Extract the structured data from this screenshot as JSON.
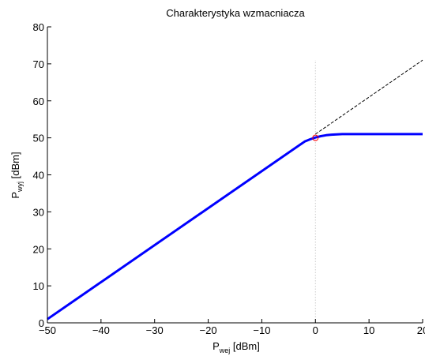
{
  "chart_data": {
    "type": "line",
    "title": "Charakterystyka wzmacniacza",
    "xlabel": {
      "main": "P",
      "sub": "wej",
      "unit": " [dBm]"
    },
    "ylabel": {
      "main": "P",
      "sub": "wyj",
      "unit": " [dBm]"
    },
    "xlim": [
      -50,
      20
    ],
    "ylim": [
      0,
      80
    ],
    "xticks": [
      -50,
      -40,
      -30,
      -20,
      -10,
      0,
      10,
      20
    ],
    "yticks": [
      0,
      10,
      20,
      30,
      40,
      50,
      60,
      70,
      80
    ],
    "grid": false,
    "series": [
      {
        "color": "#0000ff",
        "style": "solid",
        "x": [
          -50,
          -2,
          -1,
          0,
          1,
          2,
          3,
          4,
          5,
          10,
          20
        ],
        "y": [
          1,
          49,
          49.6,
          50.1,
          50.45,
          50.7,
          50.85,
          50.95,
          51,
          51,
          51
        ]
      },
      {
        "color": "#000000",
        "style": "dashed",
        "x": [
          0,
          20
        ],
        "y": [
          51,
          71
        ]
      }
    ],
    "annotations": [
      {
        "type": "vline",
        "x": 0,
        "y_range": [
          0,
          71
        ],
        "color": "#cccccc",
        "style": "dotted"
      },
      {
        "type": "marker",
        "shape": "circle",
        "x": 0,
        "y": 50,
        "color": "#ff0000"
      }
    ]
  }
}
